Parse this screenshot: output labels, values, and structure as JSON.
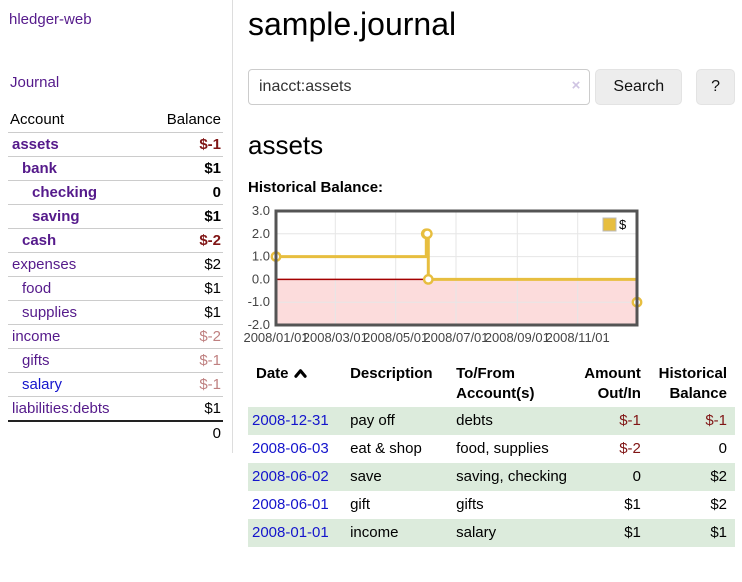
{
  "app": {
    "brand": "hledger-web"
  },
  "colors": {
    "link_purple": "#551a8b",
    "link_blue": "#1414cc",
    "negative_strong": "#801515",
    "negative_muted": "#bf8080",
    "row_stripe_green": "#dcebdc"
  },
  "icons": {
    "sort_ascending": "chevron-up",
    "clear_search": "x-cross"
  },
  "sidebar": {
    "journal_label": "Journal",
    "table": {
      "headers": [
        "Account",
        "Balance"
      ],
      "rows": [
        {
          "label": "assets",
          "depth": 1,
          "bold": true,
          "balance": "$-1",
          "balance_class": "neg",
          "link_class": ""
        },
        {
          "label": "bank",
          "depth": 2,
          "bold": true,
          "balance": "$1",
          "balance_class": "",
          "link_class": ""
        },
        {
          "label": "checking",
          "depth": 3,
          "bold": true,
          "balance": "0",
          "balance_class": "",
          "link_class": ""
        },
        {
          "label": "saving",
          "depth": 3,
          "bold": true,
          "balance": "$1",
          "balance_class": "",
          "link_class": ""
        },
        {
          "label": "cash",
          "depth": 2,
          "bold": true,
          "balance": "$-2",
          "balance_class": "neg",
          "link_class": ""
        },
        {
          "label": "expenses",
          "depth": 1,
          "bold": false,
          "balance": "$2",
          "balance_class": "",
          "link_class": ""
        },
        {
          "label": "food",
          "depth": 2,
          "bold": false,
          "balance": "$1",
          "balance_class": "",
          "link_class": ""
        },
        {
          "label": "supplies",
          "depth": 2,
          "bold": false,
          "balance": "$1",
          "balance_class": "",
          "link_class": ""
        },
        {
          "label": "income",
          "depth": 1,
          "bold": false,
          "balance": "$-2",
          "balance_class": "negmuted",
          "link_class": ""
        },
        {
          "label": "gifts",
          "depth": 2,
          "bold": false,
          "balance": "$-1",
          "balance_class": "negmuted",
          "link_class": ""
        },
        {
          "label": "salary",
          "depth": 2,
          "bold": false,
          "balance": "$-1",
          "balance_class": "negmuted",
          "link_class": "blue"
        },
        {
          "label": "liabilities:debts",
          "depth": 1,
          "bold": false,
          "balance": "$1",
          "balance_class": "",
          "link_class": ""
        }
      ],
      "total": "0"
    }
  },
  "main": {
    "title": "sample.journal",
    "search": {
      "value": "inacct:assets",
      "clear_icon": "×",
      "button_label": "Search",
      "help_label": "?"
    },
    "account_heading": "assets",
    "chart_label": "Historical Balance:"
  },
  "chart_data": {
    "type": "line",
    "title": "Historical Balance",
    "step": true,
    "series": [
      {
        "name": "$",
        "color": "#e7be3f",
        "points": [
          [
            "2008-01-01",
            1
          ],
          [
            "2008-06-01",
            2
          ],
          [
            "2008-06-02",
            2
          ],
          [
            "2008-06-03",
            0
          ],
          [
            "2008-12-31",
            -1
          ]
        ]
      }
    ],
    "xlim": [
      "2008-01-01",
      "2008-12-31"
    ],
    "ylim": [
      -2,
      3
    ],
    "x_ticks": [
      "2008/01/01",
      "2008/03/01",
      "2008/05/01",
      "2008/07/01",
      "2008/09/01",
      "2008/11/01"
    ],
    "y_ticks": [
      3,
      2,
      1,
      0,
      -1,
      -2
    ],
    "legend": {
      "label": "$",
      "position": "top-right"
    },
    "grid": true,
    "grid_color": "#e6e6e6",
    "border_color": "#545454",
    "tick_label_color": "#444444",
    "negative_region_color": "#fcdcdc",
    "zero_line_color": "#a40000",
    "marker_fill": "#ffffff"
  },
  "register": {
    "headers": [
      "Date",
      "Description",
      "To/From Account(s)",
      "Amount Out/In",
      "Historical Balance"
    ],
    "rows": [
      {
        "date": "2008-12-31",
        "description": "pay off",
        "accounts": "debts",
        "amount": "$-1",
        "amount_class": "neg",
        "balance": "$-1",
        "balance_class": "neg"
      },
      {
        "date": "2008-06-03",
        "description": "eat & shop",
        "accounts": "food, supplies",
        "amount": "$-2",
        "amount_class": "neg",
        "balance": "0",
        "balance_class": ""
      },
      {
        "date": "2008-06-02",
        "description": "save",
        "accounts": "saving, checking",
        "amount": "0",
        "amount_class": "",
        "balance": "$2",
        "balance_class": ""
      },
      {
        "date": "2008-06-01",
        "description": "gift",
        "accounts": "gifts",
        "amount": "$1",
        "amount_class": "",
        "balance": "$2",
        "balance_class": ""
      },
      {
        "date": "2008-01-01",
        "description": "income",
        "accounts": "salary",
        "amount": "$1",
        "amount_class": "",
        "balance": "$1",
        "balance_class": ""
      }
    ]
  }
}
